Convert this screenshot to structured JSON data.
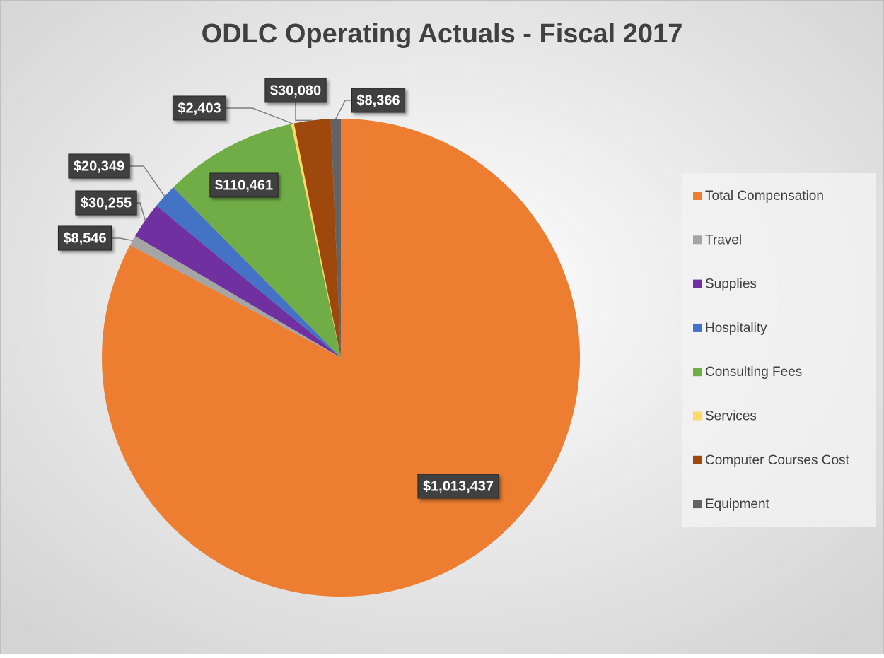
{
  "chart_data": {
    "type": "pie",
    "title": "ODLC Operating Actuals - Fiscal 2017",
    "categories": [
      "Total Compensation",
      "Travel",
      "Supplies",
      "Hospitality",
      "Consulting Fees",
      "Services",
      "Computer Courses Cost",
      "Equipment"
    ],
    "values": [
      1013437,
      8546,
      30255,
      20349,
      110461,
      2403,
      30080,
      8366
    ],
    "value_labels": [
      "$1,013,437",
      "$8,546",
      "$30,255",
      "$20,349",
      "$110,461",
      "$2,403",
      "$30,080",
      "$8,366"
    ],
    "colors": [
      "#ed7d31",
      "#a5a5a5",
      "#7030a0",
      "#4472c4",
      "#70ad47",
      "#ffd966",
      "#9e480e",
      "#636363"
    ],
    "legend": "right"
  }
}
